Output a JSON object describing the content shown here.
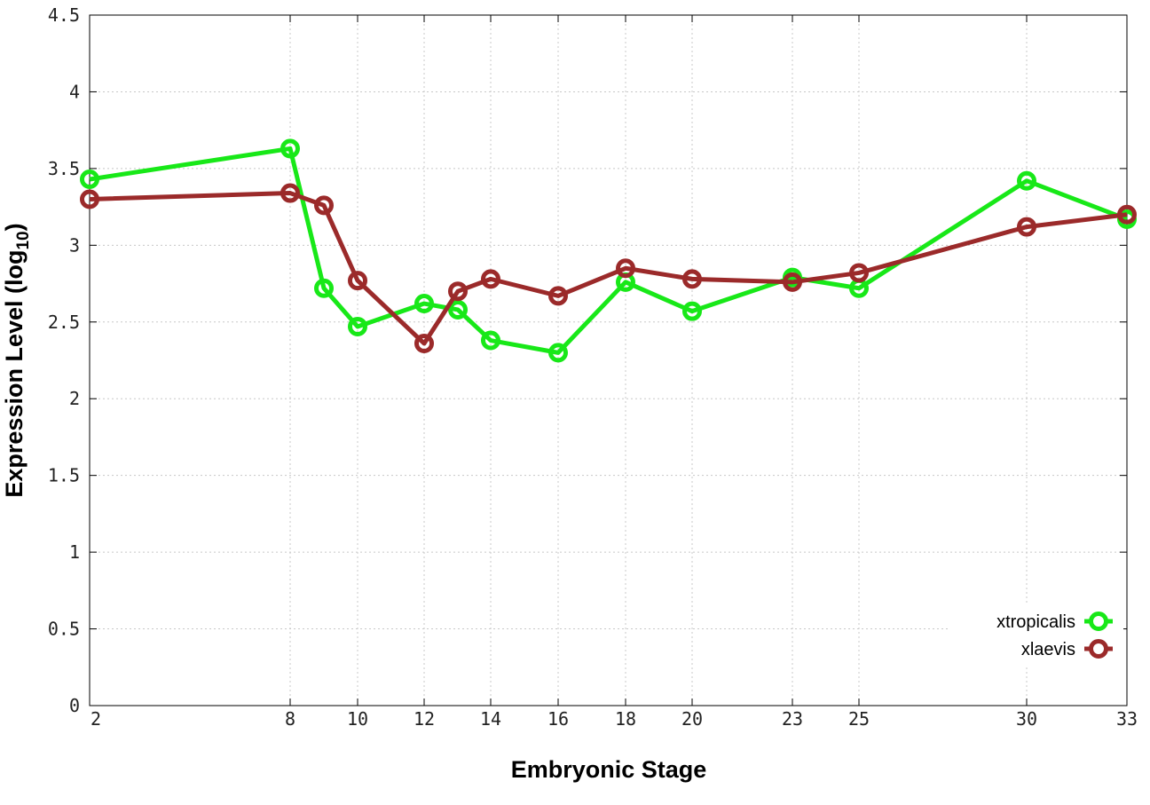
{
  "chart_data": {
    "type": "line",
    "xlabel": "Embryonic Stage",
    "ylabel": "Expression Level (log",
    "ylabel_sub": "10",
    "ylabel_close": ")",
    "x_categories": [
      "2",
      "8",
      "9",
      "10",
      "12",
      "13",
      "14",
      "16",
      "18",
      "20",
      "23",
      "25",
      "30",
      "33"
    ],
    "x_tick_labels": [
      "2",
      "8",
      "10",
      "12",
      "14",
      "16",
      "18",
      "20",
      "23",
      "25",
      "30",
      "33"
    ],
    "y_ticks": [
      "0",
      "0.5",
      "1",
      "1.5",
      "2",
      "2.5",
      "3",
      "3.5",
      "4",
      "4.5"
    ],
    "ylim": [
      0,
      4.5
    ],
    "grid": true,
    "legend_position": "bottom-right",
    "series": [
      {
        "name": "xtropicalis",
        "color": "#18e818",
        "x": [
          "2",
          "8",
          "9",
          "10",
          "12",
          "13",
          "14",
          "16",
          "18",
          "20",
          "23",
          "25",
          "30",
          "33"
        ],
        "values": [
          3.43,
          3.63,
          2.72,
          2.47,
          2.62,
          2.58,
          2.38,
          2.3,
          2.76,
          2.57,
          2.79,
          2.72,
          3.42,
          3.17
        ]
      },
      {
        "name": "xlaevis",
        "color": "#9b2a2a",
        "x": [
          "2",
          "8",
          "9",
          "10",
          "12",
          "13",
          "14",
          "16",
          "18",
          "20",
          "23",
          "25",
          "30",
          "33"
        ],
        "values": [
          3.3,
          3.34,
          3.26,
          2.77,
          2.36,
          2.7,
          2.78,
          2.67,
          2.85,
          2.78,
          2.76,
          2.82,
          3.12,
          3.2
        ]
      }
    ]
  }
}
